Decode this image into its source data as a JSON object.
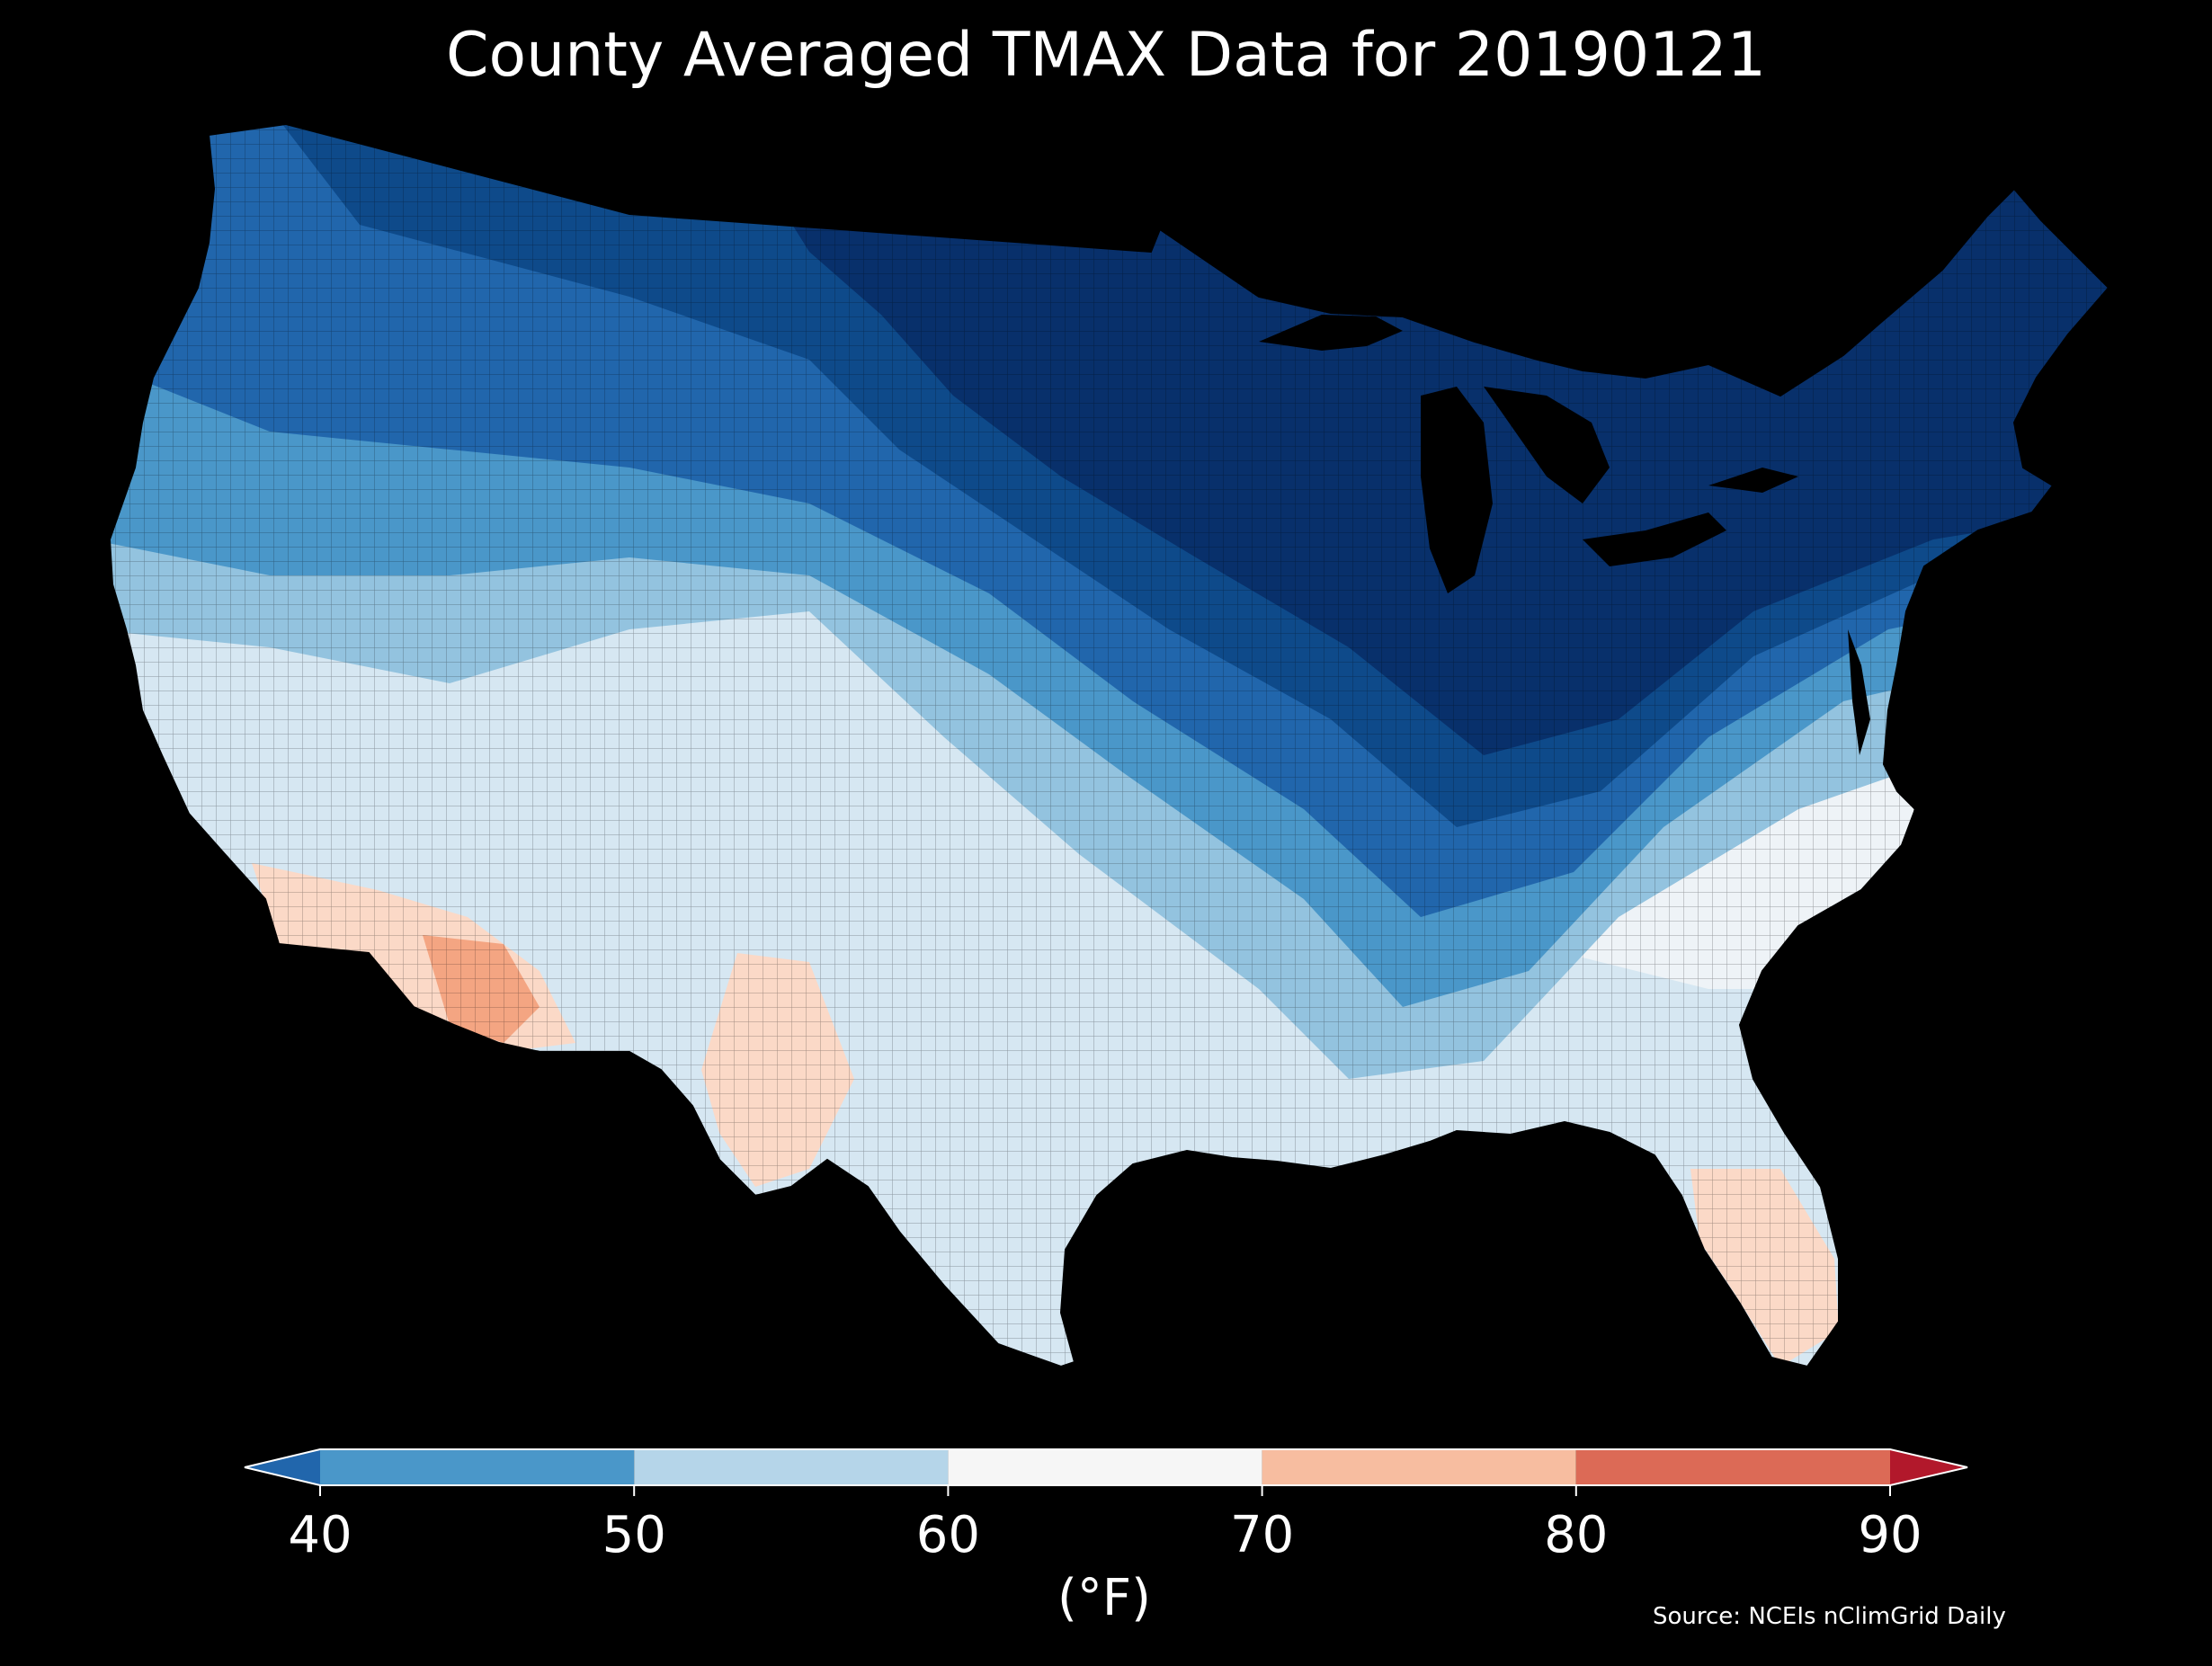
{
  "title": "County Averaged TMAX Data for 20190121",
  "source": "Source: NCEIs nClimGrid Daily",
  "colorbar": {
    "unit_label": "(°F)",
    "ticks": [
      "40",
      "50",
      "60",
      "70",
      "80",
      "90"
    ],
    "tick_values": [
      40,
      50,
      60,
      70,
      80,
      90
    ],
    "bins": [
      {
        "from": 40,
        "to": 50,
        "color": "#4a97c9"
      },
      {
        "from": 50,
        "to": 60,
        "color": "#b5d5e9"
      },
      {
        "from": 60,
        "to": 70,
        "color": "#f6f6f6"
      },
      {
        "from": 70,
        "to": 80,
        "color": "#f7bda0"
      },
      {
        "from": 80,
        "to": 90,
        "color": "#dc6a56"
      }
    ],
    "under_color": "#2166ac",
    "over_color": "#b2182b",
    "extend": "both"
  },
  "map": {
    "region": "Contiguous United States",
    "colors": {
      "coldest": "#08306b",
      "very_cold": "#0e4a8a",
      "cold": "#2166ac",
      "cool": "#4a97c9",
      "mild_cool": "#93c3df",
      "mild": "#d6e7f2",
      "neutral": "#eef3f7",
      "warm": "#fbd9c7",
      "hot": "#f4a582",
      "background": "#000000",
      "borders": "#000000"
    }
  }
}
